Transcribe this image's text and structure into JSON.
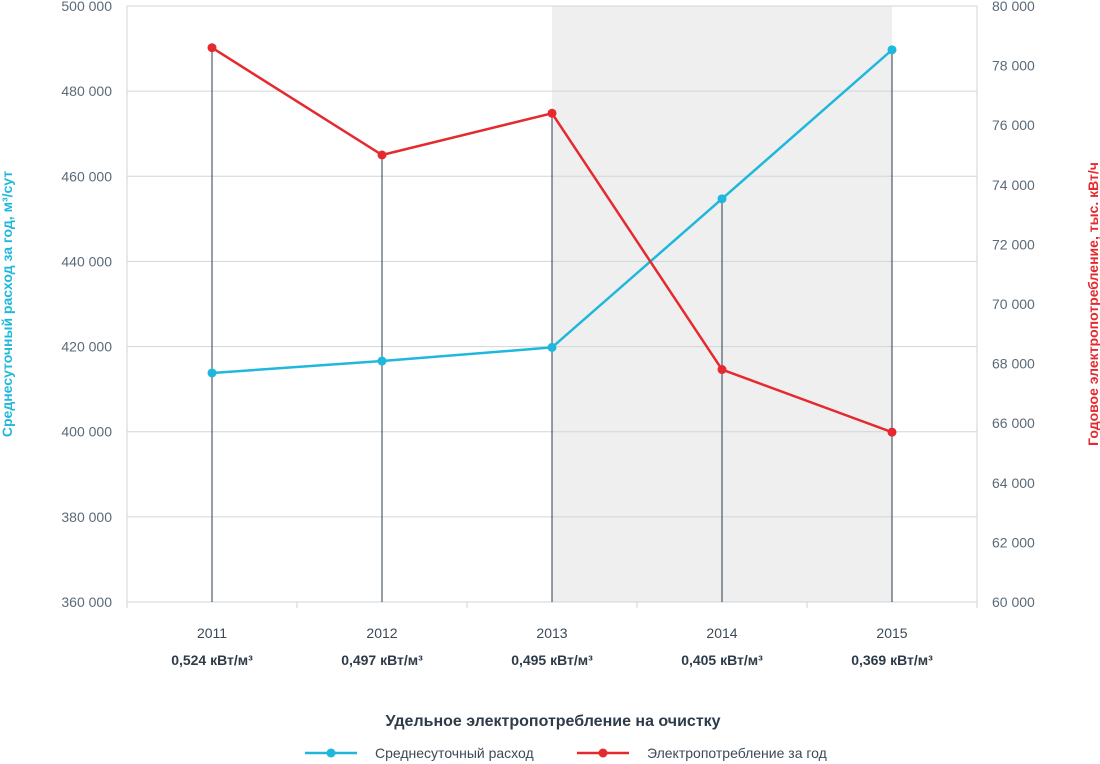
{
  "chart_data": {
    "type": "line",
    "categories": [
      "2011",
      "2012",
      "2013",
      "2014",
      "2015"
    ],
    "category_sublabels": [
      "0,524 кВт/м³",
      "0,497 кВт/м³",
      "0,495 кВт/м³",
      "0,405 кВт/м³",
      "0,369 кВт/м³"
    ],
    "xlabel": "Удельное электропотребление на очистку",
    "ylabel_left": "Среднесуточный расход за год, м³/сут",
    "ylabel_right": "Годовое электропотребление, тыс. кВт/ч",
    "y_left": {
      "min": 360000,
      "max": 500000,
      "ticks": [
        360000,
        380000,
        400000,
        420000,
        440000,
        460000,
        480000,
        500000
      ],
      "tick_labels": [
        "360 000",
        "380 000",
        "400 000",
        "420 000",
        "440 000",
        "460 000",
        "480 000",
        "500 000"
      ]
    },
    "y_right": {
      "min": 60000,
      "max": 80000,
      "ticks": [
        60000,
        62000,
        64000,
        66000,
        68000,
        70000,
        72000,
        74000,
        76000,
        78000,
        80000
      ],
      "tick_labels": [
        "60 000",
        "62 000",
        "64 000",
        "66 000",
        "68 000",
        "70 000",
        "72 000",
        "74 000",
        "76 000",
        "78 000",
        "80 000"
      ]
    },
    "highlight_range": [
      "2013",
      "2015"
    ],
    "grid": true,
    "legend_position": "bottom-center",
    "series": [
      {
        "name": "Среднесуточный расход",
        "axis": "left",
        "color": "#1fb8dc",
        "values": [
          413800,
          416600,
          419800,
          454700,
          489700
        ]
      },
      {
        "name": "Электропотребление за год",
        "axis": "right",
        "color": "#e52a2f",
        "values": [
          78600,
          75000,
          76400,
          67800,
          65700
        ]
      }
    ]
  }
}
